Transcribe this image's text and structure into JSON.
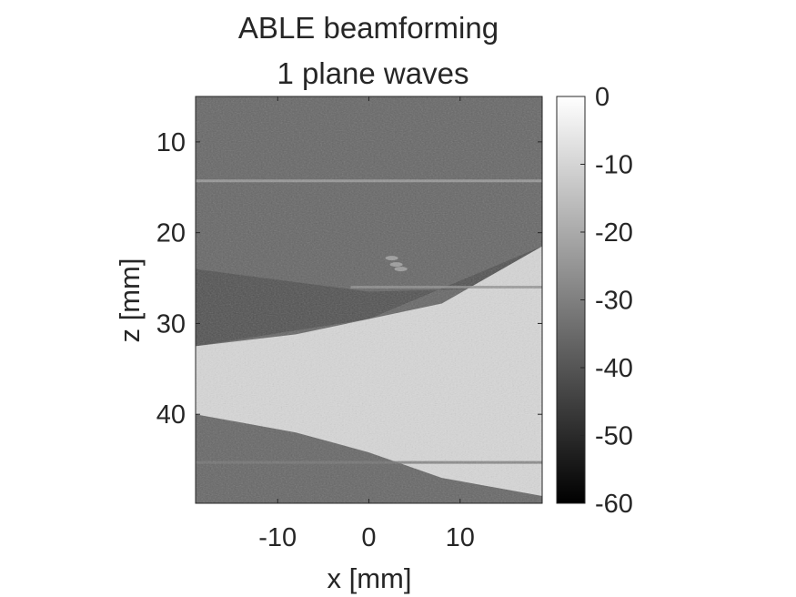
{
  "chart_data": {
    "type": "heatmap",
    "title_line1": "ABLE beamforming",
    "title_line2": "1 plane waves",
    "xlabel": "x [mm]",
    "ylabel": "z [mm]",
    "xlim": [
      -19,
      19
    ],
    "ylim": [
      5,
      49.8
    ],
    "y_reversed": true,
    "x_ticks": [
      -10,
      0,
      10
    ],
    "x_tick_labels": [
      "-10",
      "0",
      "10"
    ],
    "y_ticks": [
      10,
      20,
      30,
      40
    ],
    "y_tick_labels": [
      "10",
      "20",
      "30",
      "40"
    ],
    "colormap": "gray",
    "color_limits": [
      -60,
      0
    ],
    "colorbar_ticks": [
      0,
      -10,
      -20,
      -30,
      -40,
      -50,
      -60
    ],
    "colorbar_tick_labels": [
      "0",
      "-10",
      "-20",
      "-30",
      "-40",
      "-50",
      "-60"
    ],
    "grid": false,
    "image_features": {
      "background_db": -36,
      "bright_band": {
        "description": "curved bright tissue layer",
        "top_edge": [
          [
            -19,
            32.5
          ],
          [
            -8,
            31.2
          ],
          [
            0,
            29.5
          ],
          [
            8,
            27.8
          ],
          [
            19,
            21.5
          ]
        ],
        "bottom_edge": [
          [
            -19,
            40.0
          ],
          [
            -8,
            42.0
          ],
          [
            0,
            44.2
          ],
          [
            8,
            47.0
          ],
          [
            19,
            49.0
          ]
        ],
        "level_db": -8
      },
      "dark_band": {
        "top_edge": [
          [
            -19,
            24.0
          ],
          [
            0,
            26.5
          ],
          [
            19,
            26.0
          ]
        ],
        "bottom_edge": [
          [
            -19,
            32.5
          ],
          [
            0,
            29.5
          ],
          [
            19,
            21.5
          ]
        ],
        "level_db": -42
      },
      "lines": [
        {
          "z": 14.3,
          "x_range": [
            -19,
            19
          ],
          "level_db": -22
        },
        {
          "z": 26.0,
          "x_range": [
            -2,
            19
          ],
          "level_db": -26
        },
        {
          "z": 45.3,
          "x_range": [
            -19,
            19
          ],
          "level_db": -32
        }
      ],
      "point_targets": [
        [
          2.5,
          22.8
        ],
        [
          3.0,
          23.5
        ],
        [
          3.5,
          24.0
        ]
      ]
    }
  }
}
